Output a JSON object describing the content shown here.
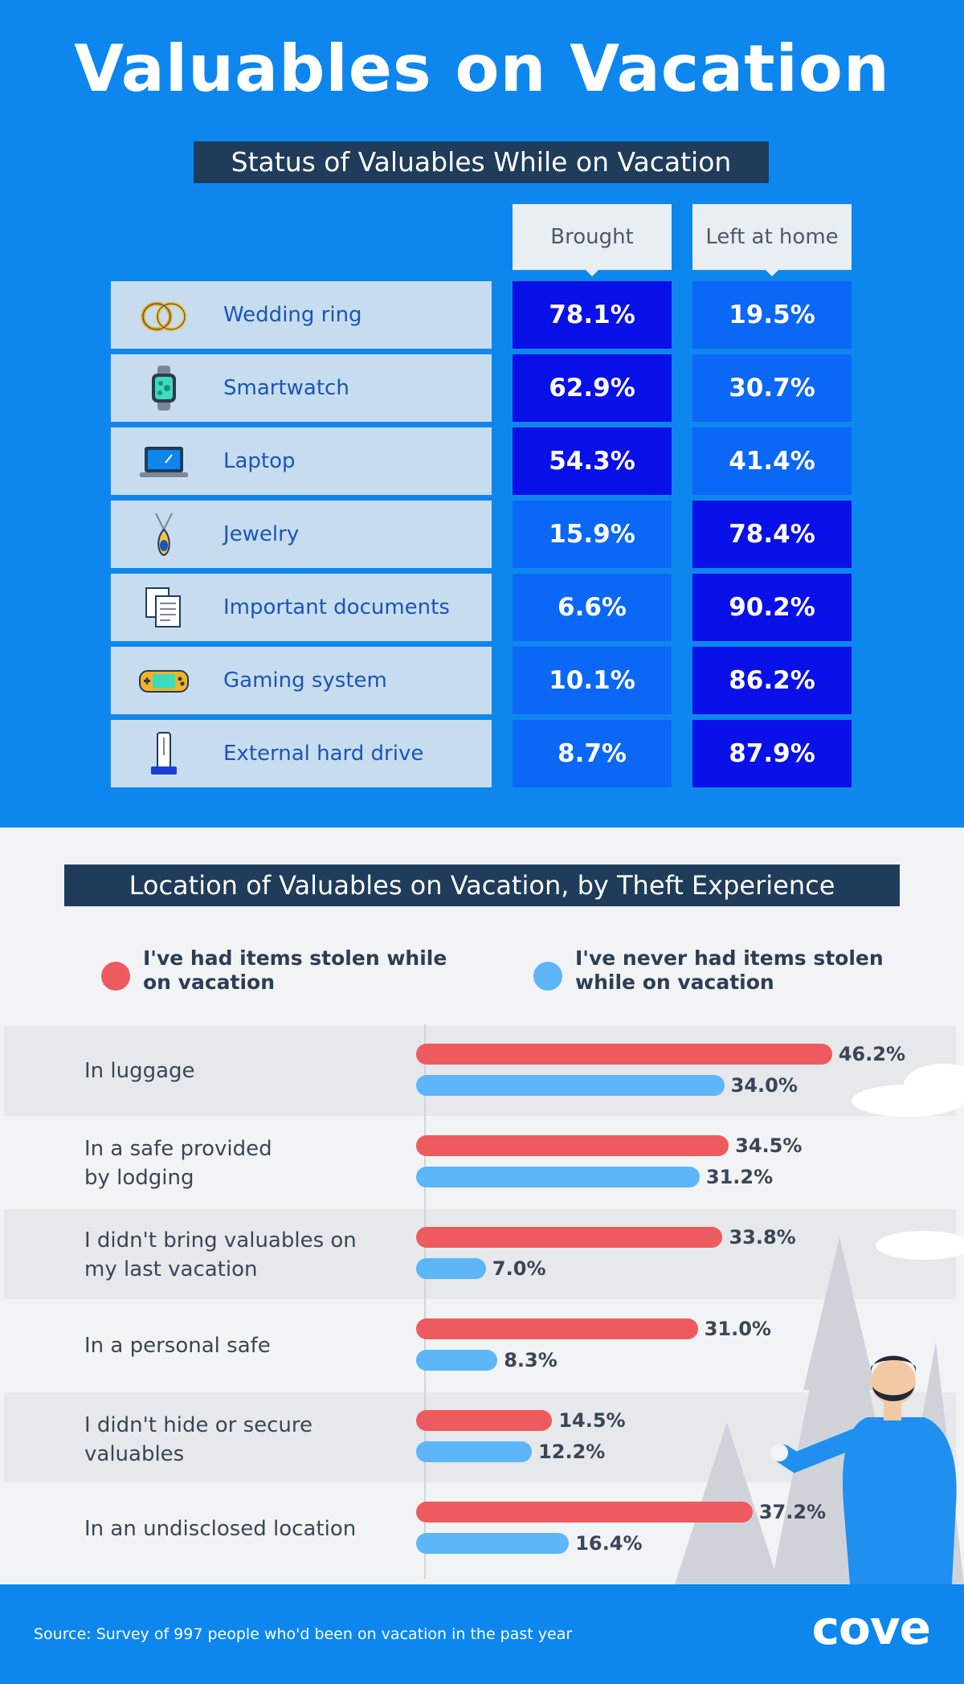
{
  "title": "Valuables on Vacation",
  "chart_data": [
    {
      "type": "table",
      "title": "Status of Valuables While on Vacation",
      "columns": [
        "Brought",
        "Left at home"
      ],
      "rows": [
        {
          "label": "Wedding ring",
          "icon": "wedding-ring-icon",
          "brought": "78.1%",
          "left": "19.5%"
        },
        {
          "label": "Smartwatch",
          "icon": "smartwatch-icon",
          "brought": "62.9%",
          "left": "30.7%"
        },
        {
          "label": "Laptop",
          "icon": "laptop-icon",
          "brought": "54.3%",
          "left": "41.4%"
        },
        {
          "label": "Jewelry",
          "icon": "jewelry-icon",
          "brought": "15.9%",
          "left": "78.4%"
        },
        {
          "label": "Important documents",
          "icon": "documents-icon",
          "brought": "6.6%",
          "left": "90.2%"
        },
        {
          "label": "Gaming system",
          "icon": "gaming-system-icon",
          "brought": "10.1%",
          "left": "86.2%"
        },
        {
          "label": "External hard drive",
          "icon": "hard-drive-icon",
          "brought": "8.7%",
          "left": "87.9%"
        }
      ]
    },
    {
      "type": "bar",
      "orientation": "horizontal",
      "title": "Location of Valuables on Vacation, by Theft Experience",
      "categories": [
        "In luggage",
        "In a safe provided by lodging",
        "I didn't bring valuables on my last vacation",
        "In a personal safe",
        "I didn't hide or secure valuables",
        "In an undisclosed location"
      ],
      "category_lines": [
        [
          "In luggage"
        ],
        [
          "In a safe provided",
          "by lodging"
        ],
        [
          "I didn't bring valuables on",
          "my last vacation"
        ],
        [
          "In a personal safe"
        ],
        [
          "I didn't hide or secure",
          "valuables"
        ],
        [
          "In an undisclosed location"
        ]
      ],
      "series": [
        {
          "name": "I've had items stolen while on vacation",
          "name_lines": [
            "I've had items stolen while",
            "on vacation"
          ],
          "color": "#ee5b5e",
          "values": [
            46.2,
            34.5,
            33.8,
            31.0,
            14.5,
            37.2
          ]
        },
        {
          "name": "I've never had items stolen while on vacation",
          "name_lines": [
            "I've never had items stolen",
            "while on vacation"
          ],
          "color": "#5cb6f8",
          "values": [
            34.0,
            31.2,
            7.0,
            8.3,
            12.2,
            16.4
          ]
        }
      ],
      "value_suffix": "%",
      "xlim": [
        0,
        50
      ]
    }
  ],
  "footer": {
    "source": "Source: Survey of 997 people who'd been on vacation in the past year",
    "brand": "cove"
  },
  "colors": {
    "background_blue": "#0d87ee",
    "banner_navy": "#1f3c5a",
    "cell_dark": "#0a10e8",
    "cell_light": "#0b67f5",
    "label_cell": "#c8dcf0"
  }
}
